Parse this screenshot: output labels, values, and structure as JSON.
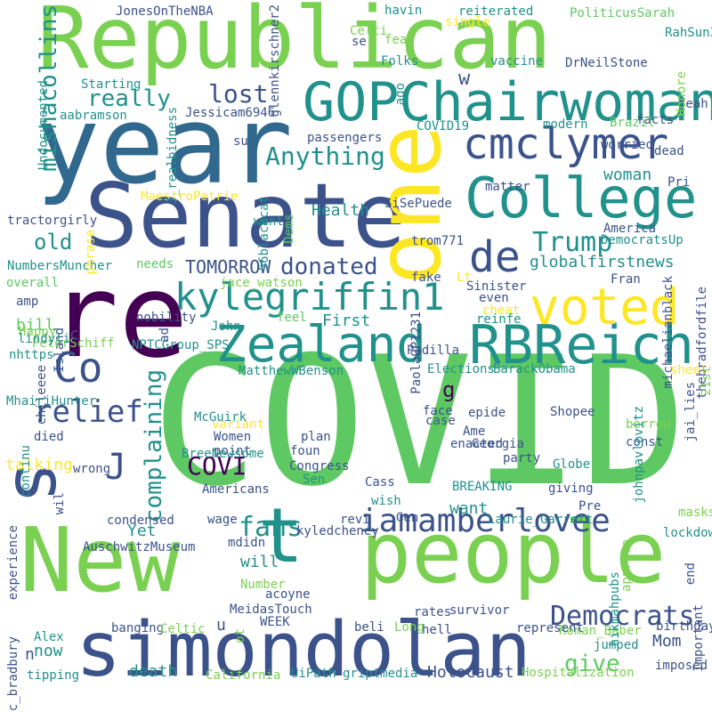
{
  "colors": {
    "dark_purple": "#440154",
    "indigo": "#3b528b",
    "slate_blue": "#31688e",
    "teal": "#21918c",
    "green": "#5ec962",
    "light_green": "#7ad151",
    "yellow": "#fde725"
  },
  "words": [
    "COVID",
    "year",
    "Republican",
    "Senate",
    "people",
    "New",
    "simondolan",
    "one",
    "re",
    "s",
    "t",
    "GOPChairwoman",
    "College",
    "cmclymer",
    "Zealand",
    "RBReich",
    "voted",
    "de",
    "Co",
    "kylegriffin1",
    "iamamberlovee",
    "complaining",
    "relief",
    "Democrats",
    "fans",
    "J",
    "Trump",
    "Anything",
    "lost",
    "really",
    "donated",
    "mishacollins",
    "old",
    "COVI",
    "g",
    "give",
    "TOMORROW",
    "globalfirstnews",
    "JonesOnTheNBA",
    "PoliticusSarah",
    "reiterated",
    "havin",
    "se",
    "fear",
    "Undocumented",
    "Jessicam6946",
    "passengers",
    "Health",
    "MaestroPetrie",
    "woman",
    "facts",
    "dead",
    "matter",
    "SiSePuede",
    "trom771",
    "DemocratsUp",
    "NumbersMuncher",
    "fake",
    "Sinister",
    "First",
    "amp",
    "bill",
    "Padilla",
    "Elections",
    "BarackObama",
    "nhttps",
    "MatthewWBenson",
    "McGuirk",
    "Women",
    "point",
    "plan",
    "foun",
    "Shopee",
    "case",
    "Ame",
    "enacted",
    "party",
    "Globe",
    "BREAKING",
    "giving",
    "want",
    "wish",
    "died",
    "wrong",
    "talking",
    "Sen",
    "condensed",
    "wage",
    "Yet",
    "AuschwitzMuseum",
    "mdidn",
    "will",
    "Number",
    "acoyne",
    "WEEK",
    "MeidasTouch",
    "rates",
    "survivor",
    "banging",
    "Celtic",
    "Alex",
    "now",
    "Mom",
    "jumped",
    "hell",
    "Roman_Baber",
    "death",
    "California",
    "UiPath",
    "griptmedia",
    "Holocaust",
    "Hospitalization",
    "tipping",
    "experience",
    "lockdow",
    "end",
    "Important",
    "thebradfordfile",
    "jai_lies",
    "continu",
    "chileeee",
    "Yeah",
    "ago",
    "Pri",
    "Fran",
    "even",
    "tractorgirly",
    "PaolaQP1231",
    "vaccine",
    "DrNeilStone",
    "Folks",
    "single",
    "Celti",
    "RahSun3",
    "Honore",
    "glennkirschner2",
    "Starting",
    "aabramson",
    "COVID19",
    "J_realbidness",
    "su",
    "modern",
    "Brazil",
    "worried",
    "phrase",
    "56blackcat",
    "America",
    "went",
    "needs",
    "overall",
    "jace_watson",
    "Lt",
    "michaelianblack",
    "nobility",
    "Dems",
    "Happy",
    "Island",
    "feel",
    "cheat",
    "reinfe",
    "PeterSchiff",
    "lindyli",
    "NPTCGroup_SPS",
    "John",
    "ad",
    "sheet",
    "21st",
    "face",
    "epide",
    "MhairiHunter",
    "borrow",
    "variant",
    "const",
    "Georgia",
    "johnpavlovitz",
    "BreeNewsome",
    "Congress",
    "Americans",
    "Cass",
    "Gen",
    "Laurie_Garrett",
    "Pre",
    "masks",
    "revi",
    "kyledcheney",
    "hikmahpubs",
    "approve",
    "birthday",
    "jc_bradbury",
    "ot",
    "beli",
    "Long",
    "represent",
    "imposed",
    "wil",
    "n",
    "u",
    "c",
    "w"
  ]
}
